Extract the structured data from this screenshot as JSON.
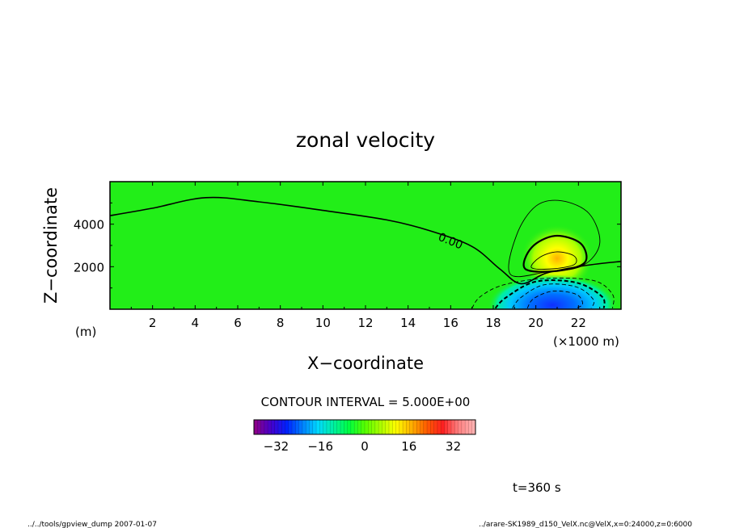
{
  "chart_data": {
    "type": "contour",
    "title": "zonal velocity",
    "xlabel": "X−coordinate",
    "ylabel": "Z−coordinate",
    "x_unit": "(×1000 m)",
    "y_unit": "(m)",
    "xlim": [
      0,
      24
    ],
    "ylim": [
      0,
      6000
    ],
    "x_ticks": [
      2,
      4,
      6,
      8,
      10,
      12,
      14,
      16,
      18,
      20,
      22
    ],
    "y_ticks": [
      2000,
      4000
    ],
    "zero_contour_label": "0.00",
    "zero_contour": [
      [
        0,
        4400
      ],
      [
        2,
        4750
      ],
      [
        4.5,
        5250
      ],
      [
        7,
        5050
      ],
      [
        10,
        4650
      ],
      [
        13,
        4200
      ],
      [
        15,
        3700
      ],
      [
        17,
        2950
      ],
      [
        18.3,
        1900
      ],
      [
        19.3,
        1200
      ],
      [
        20.5,
        1700
      ],
      [
        22.3,
        2050
      ],
      [
        24,
        2250
      ]
    ],
    "positive_contours": [
      {
        "value": 5,
        "points": [
          [
            18.8,
            1650
          ],
          [
            19.1,
            3500
          ],
          [
            20,
            4850
          ],
          [
            21.2,
            5100
          ],
          [
            22.5,
            4500
          ],
          [
            23,
            3100
          ],
          [
            22.2,
            2050
          ],
          [
            20.5,
            1750
          ]
        ]
      },
      {
        "value": 10,
        "points": [
          [
            19.5,
            1900
          ],
          [
            19.8,
            2900
          ],
          [
            20.9,
            3450
          ],
          [
            22.1,
            3100
          ],
          [
            22.3,
            2200
          ],
          [
            21,
            1800
          ]
        ]
      },
      {
        "value": 15,
        "points": [
          [
            19.8,
            1950
          ],
          [
            20.2,
            2450
          ],
          [
            21,
            2700
          ],
          [
            21.8,
            2500
          ],
          [
            21.8,
            2100
          ],
          [
            20.8,
            1900
          ]
        ]
      }
    ],
    "negative_contours": [
      {
        "value": -5,
        "points": [
          [
            17,
            50
          ],
          [
            17.4,
            600
          ],
          [
            18.5,
            1150
          ],
          [
            20.5,
            1450
          ],
          [
            22.7,
            1350
          ],
          [
            23.6,
            700
          ],
          [
            23.6,
            50
          ]
        ]
      },
      {
        "value": -10,
        "points": [
          [
            18.1,
            50
          ],
          [
            18.6,
            550
          ],
          [
            20,
            1300
          ],
          [
            21.9,
            1250
          ],
          [
            23.1,
            600
          ],
          [
            23.2,
            50
          ]
        ]
      },
      {
        "value": -15,
        "points": [
          [
            18.9,
            50
          ],
          [
            19.3,
            550
          ],
          [
            20.4,
            1150
          ],
          [
            21.9,
            1050
          ],
          [
            22.7,
            450
          ],
          [
            22.6,
            50
          ]
        ]
      },
      {
        "value": -20,
        "points": [
          [
            19.6,
            50
          ],
          [
            19.9,
            500
          ],
          [
            20.8,
            850
          ],
          [
            21.9,
            700
          ],
          [
            22.2,
            250
          ],
          [
            21.9,
            50
          ]
        ]
      }
    ],
    "colorbar": {
      "ticks": [
        -32,
        -16,
        0,
        16,
        32
      ],
      "range": [
        -40,
        40
      ],
      "colors": [
        "#8a008a",
        "#4400cc",
        "#0022ff",
        "#007fff",
        "#00d9ff",
        "#00f0a0",
        "#00ff40",
        "#55ff00",
        "#aaff00",
        "#ffff00",
        "#ffb000",
        "#ff5a00",
        "#ff2020",
        "#ff8080",
        "#ffb0b0"
      ]
    },
    "contour_interval_label": "CONTOUR INTERVAL = 5.000E+00",
    "time_label": "t=360 s"
  },
  "footer": {
    "left": "../../tools/gpview_dump  2007-01-07",
    "right": "../arare-SK1989_d150_VelX.nc@VelX,x=0:24000,z=0:6000"
  },
  "colors": {
    "background": "#22ee18",
    "axis": "#000000"
  }
}
